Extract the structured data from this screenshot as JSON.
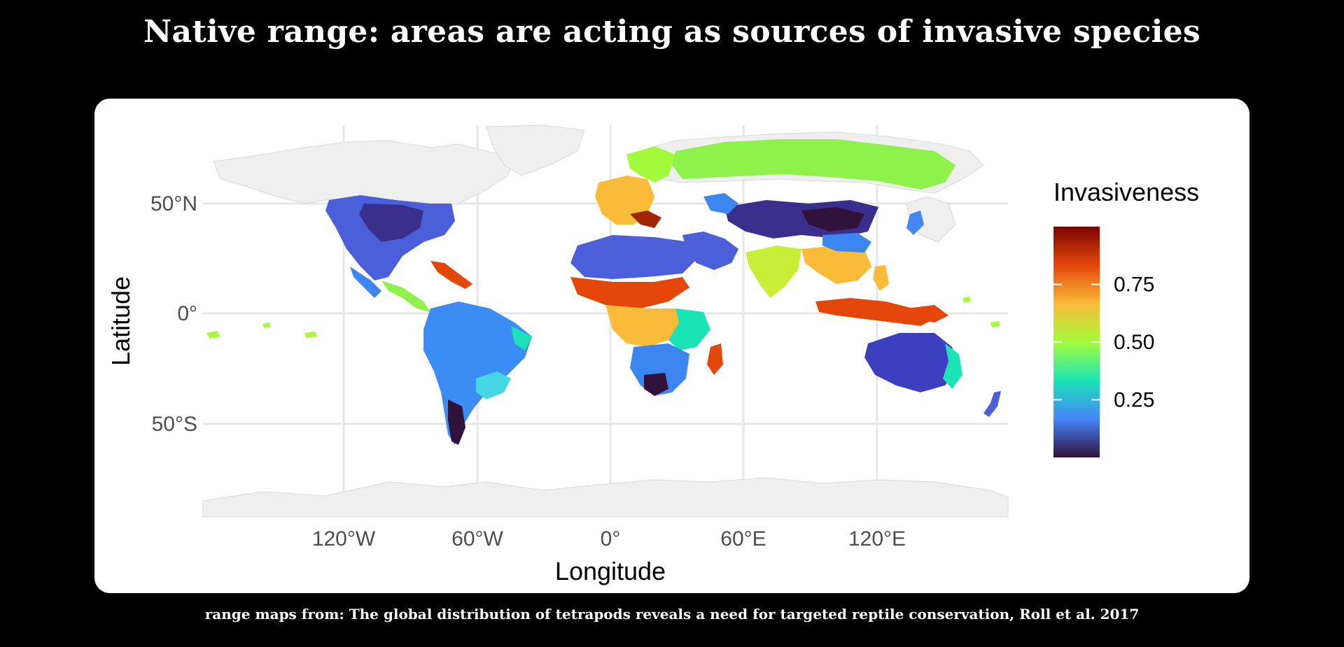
{
  "title": "Native range: areas are acting as sources of invasive species",
  "caption": "range maps from: The global distribution of tetrapods reveals a need for targeted reptile conservation, Roll et al. 2017",
  "map": {
    "x_axis_title": "Longitude",
    "y_axis_title": "Latitude",
    "x_ticks": [
      "120°W",
      "60°W",
      "0°",
      "60°E",
      "120°E"
    ],
    "y_ticks": [
      "50°N",
      "0°",
      "50°S"
    ],
    "legend": {
      "title": "Invasiveness",
      "labels": [
        "0.75",
        "0.50",
        "0.25"
      ],
      "values": [
        0.75,
        0.5,
        0.25
      ],
      "range": [
        0,
        1
      ],
      "colors": [
        "#30123b",
        "#4686fb",
        "#1ae4b6",
        "#a2fc3c",
        "#fabb39",
        "#e4460a",
        "#7a0403"
      ]
    },
    "land_color": "#efefef",
    "grid_color": "#e6e6e6"
  }
}
